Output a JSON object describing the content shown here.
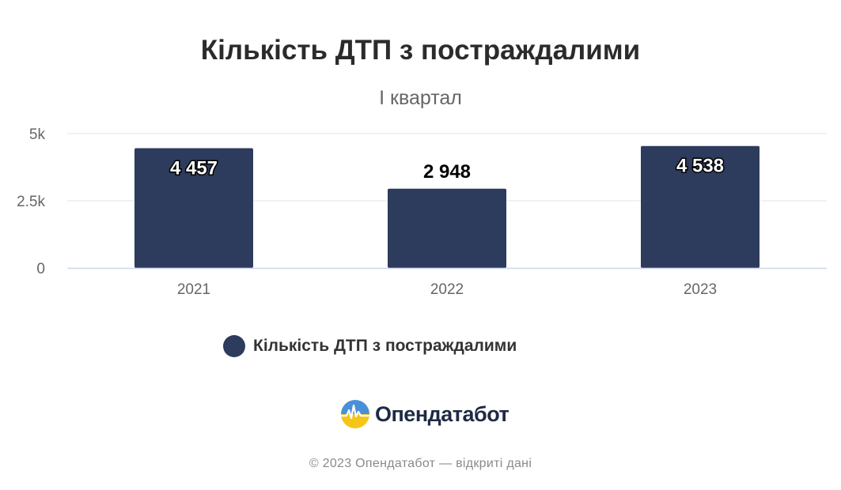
{
  "chart_data": {
    "type": "bar",
    "title": "Кількість ДТП з постраждалими",
    "subtitle": "І квартал",
    "categories": [
      "2021",
      "2022",
      "2023"
    ],
    "series": [
      {
        "name": "Кількість ДТП з постраждалими",
        "values": [
          4457,
          2948,
          4538
        ]
      }
    ],
    "data_labels": [
      "4 457",
      "2 948",
      "4 538"
    ],
    "y_ticks": [
      {
        "value": 0,
        "label": "0"
      },
      {
        "value": 2500,
        "label": "2.5k"
      },
      {
        "value": 5000,
        "label": "5k"
      }
    ],
    "ylim": [
      0,
      5000
    ],
    "xlabel": "",
    "ylabel": "",
    "grid": true,
    "legend_position": "bottom",
    "colors": {
      "bar": "#2d3b5c",
      "grid": "#e6e6e6",
      "axis": "#ccd6eb",
      "tick_text": "#666666"
    }
  },
  "logo": {
    "name": "Опендатабот",
    "icon": "opendatabot-logo-icon"
  },
  "credits": "© 2023 Опендатабот — відкриті дані"
}
